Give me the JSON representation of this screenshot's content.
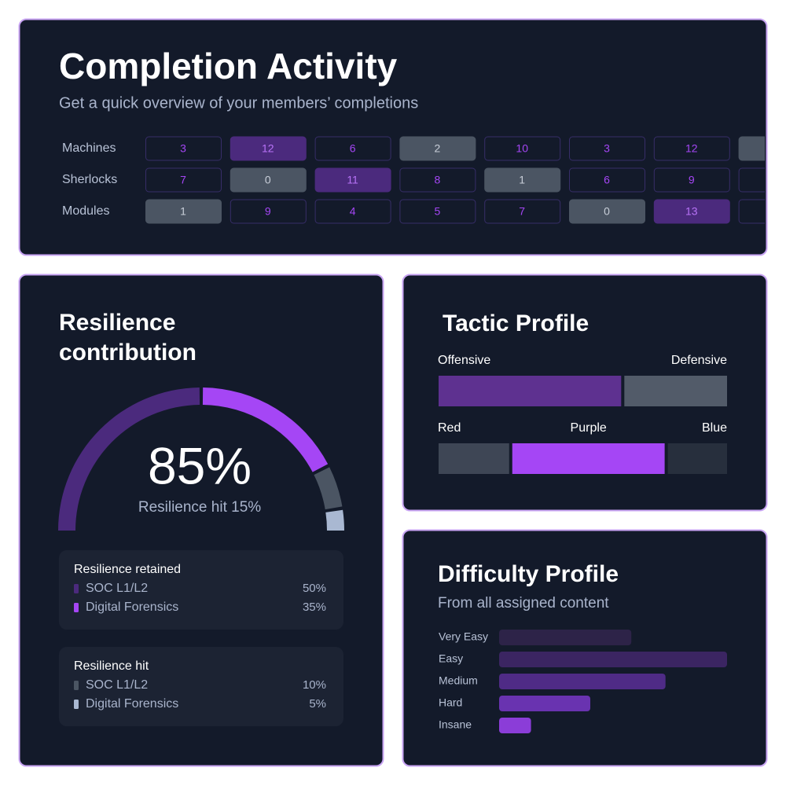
{
  "completion_activity": {
    "title": "Completion Activity",
    "subtitle": "Get a quick overview of your members’ completions",
    "rows": [
      {
        "label": "Machines",
        "values": [
          3,
          12,
          6,
          2,
          10,
          3,
          12
        ],
        "styles": [
          "outline",
          "highlight",
          "outline",
          "muted",
          "outline",
          "outline",
          "outline"
        ]
      },
      {
        "label": "Sherlocks",
        "values": [
          7,
          0,
          11,
          8,
          1,
          6,
          9
        ],
        "styles": [
          "outline",
          "muted",
          "highlight",
          "outline",
          "muted",
          "outline",
          "outline"
        ]
      },
      {
        "label": "Modules",
        "values": [
          1,
          9,
          4,
          5,
          7,
          0,
          13
        ],
        "styles": [
          "muted",
          "outline",
          "outline",
          "outline",
          "outline",
          "muted",
          "highlight"
        ]
      }
    ]
  },
  "resilience": {
    "title": "Resilience contribution",
    "center_value": {
      "value": 85,
      "label": "85%"
    },
    "caption": "Resilience hit 15%",
    "groups": [
      {
        "title": "Resilience retained",
        "items": [
          {
            "name": "SOC L1/L2",
            "value": 50,
            "label": "50%",
            "color": "#4b2a7d"
          },
          {
            "name": "Digital Forensics",
            "value": 35,
            "label": "35%",
            "color": "#a546f5"
          }
        ]
      },
      {
        "title": "Resilience hit",
        "items": [
          {
            "name": "SOC L1/L2",
            "value": 10,
            "label": "10%",
            "color": "#4b5563"
          },
          {
            "name": "Digital Forensics",
            "value": 5,
            "label": "5%",
            "color": "#a9b8d2"
          }
        ]
      }
    ]
  },
  "tactic_profile": {
    "title": "Tactic Profile",
    "bars": [
      {
        "segments": [
          {
            "name": "Offensive",
            "value": 64,
            "color": "#5e3190"
          },
          {
            "name": "Defensive",
            "value": 36,
            "color": "#525b69"
          }
        ]
      },
      {
        "segments": [
          {
            "name": "Red",
            "value": 25,
            "color": "#3e4655"
          },
          {
            "name": "Purple",
            "value": 54,
            "color": "#a546f5"
          },
          {
            "name": "Blue",
            "value": 21,
            "color": "#272f3d"
          }
        ]
      }
    ]
  },
  "difficulty_profile": {
    "title": "Difficulty Profile",
    "subtitle": "From all assigned content",
    "categories": [
      "Very Easy",
      "Easy",
      "Medium",
      "Hard",
      "Insane"
    ],
    "values": [
      58,
      100,
      73,
      40,
      14
    ],
    "colors": [
      "#2d2348",
      "#3b2562",
      "#4f2b86",
      "#6933b0",
      "#8b3dd8"
    ],
    "xlim": [
      0,
      100
    ]
  }
}
